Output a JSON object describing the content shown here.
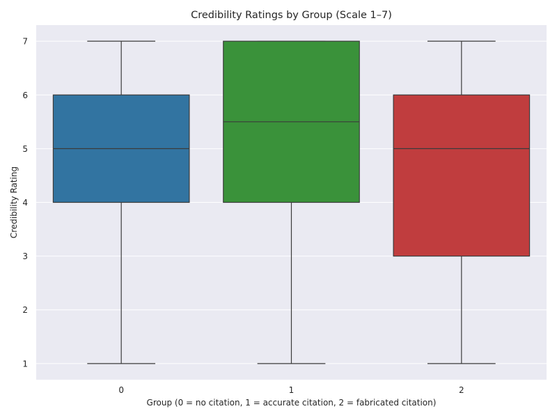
{
  "chart_data": {
    "type": "box",
    "title": "Credibility Ratings by Group (Scale 1–7)",
    "xlabel": "Group (0 = no citation, 1 = accurate citation, 2 = fabricated citation)",
    "ylabel": "Credibility Rating",
    "ylim": [
      0.7,
      7.3
    ],
    "yticks": [
      1,
      2,
      3,
      4,
      5,
      6,
      7
    ],
    "grid": true,
    "background_color": "#eaeaf2",
    "categories": [
      "0",
      "1",
      "2"
    ],
    "boxes": [
      {
        "category": "0",
        "whisker_low": 1,
        "q1": 4,
        "median": 5,
        "q3": 6,
        "whisker_high": 7,
        "color": "#3274a1"
      },
      {
        "category": "1",
        "whisker_low": 1,
        "q1": 4,
        "median": 5.5,
        "q3": 7,
        "whisker_high": 7,
        "color": "#3a923a"
      },
      {
        "category": "2",
        "whisker_low": 1,
        "q1": 3,
        "median": 5,
        "q3": 6,
        "whisker_high": 7,
        "color": "#c03d3e"
      }
    ]
  }
}
